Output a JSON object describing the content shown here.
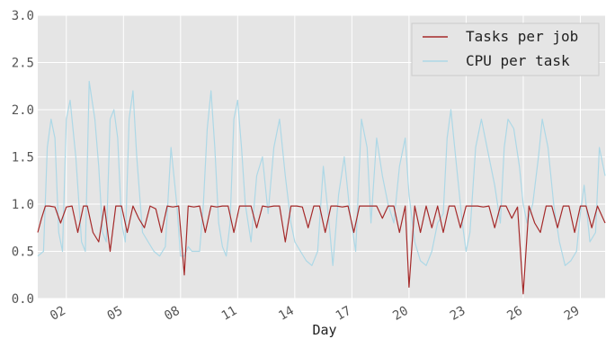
{
  "chart_data": {
    "type": "line",
    "title": "",
    "xlabel": "Day",
    "ylabel": "",
    "xlim": [
      0.5,
      30.3
    ],
    "ylim": [
      0.0,
      3.0
    ],
    "grid": true,
    "legend_position": "top-right",
    "x_ticks": [
      {
        "value": 2,
        "label": "02"
      },
      {
        "value": 5,
        "label": "05"
      },
      {
        "value": 8,
        "label": "08"
      },
      {
        "value": 11,
        "label": "11"
      },
      {
        "value": 14,
        "label": "14"
      },
      {
        "value": 17,
        "label": "17"
      },
      {
        "value": 20,
        "label": "20"
      },
      {
        "value": 23,
        "label": "23"
      },
      {
        "value": 26,
        "label": "26"
      },
      {
        "value": 29,
        "label": "29"
      }
    ],
    "y_ticks": [
      {
        "value": 0.0,
        "label": "0.0"
      },
      {
        "value": 0.5,
        "label": "0.5"
      },
      {
        "value": 1.0,
        "label": "1.0"
      },
      {
        "value": 1.5,
        "label": "1.5"
      },
      {
        "value": 2.0,
        "label": "2.0"
      },
      {
        "value": 2.5,
        "label": "2.5"
      },
      {
        "value": 3.0,
        "label": "3.0"
      }
    ],
    "series": [
      {
        "name": "CPU per task",
        "color": "#add8e6",
        "x": [
          0.5,
          0.8,
          1.0,
          1.2,
          1.4,
          1.6,
          1.8,
          2.0,
          2.2,
          2.5,
          2.8,
          3.0,
          3.2,
          3.5,
          3.7,
          3.9,
          4.1,
          4.3,
          4.5,
          4.7,
          4.9,
          5.1,
          5.3,
          5.5,
          5.7,
          6.0,
          6.3,
          6.6,
          6.9,
          7.2,
          7.5,
          7.8,
          8.0,
          8.2,
          8.4,
          8.6,
          8.8,
          9.0,
          9.2,
          9.4,
          9.6,
          9.8,
          10.0,
          10.2,
          10.4,
          10.6,
          10.8,
          11.0,
          11.2,
          11.4,
          11.7,
          12.0,
          12.3,
          12.6,
          12.9,
          13.2,
          13.5,
          13.8,
          14.0,
          14.3,
          14.6,
          14.9,
          15.2,
          15.5,
          15.8,
          16.0,
          16.3,
          16.6,
          16.9,
          17.2,
          17.5,
          17.8,
          18.0,
          18.3,
          18.6,
          18.9,
          19.2,
          19.5,
          19.8,
          20.0,
          20.3,
          20.6,
          20.9,
          21.2,
          21.5,
          21.8,
          22.0,
          22.2,
          22.5,
          22.8,
          23.0,
          23.2,
          23.5,
          23.8,
          24.0,
          24.2,
          24.5,
          24.8,
          25.0,
          25.2,
          25.5,
          25.8,
          26.0,
          26.2,
          26.5,
          26.8,
          27.0,
          27.3,
          27.6,
          27.9,
          28.2,
          28.5,
          28.8,
          29.0,
          29.2,
          29.5,
          29.8,
          30.0,
          30.3
        ],
        "values": [
          0.45,
          0.5,
          1.6,
          1.9,
          1.7,
          0.7,
          0.5,
          1.9,
          2.1,
          1.5,
          0.6,
          0.5,
          2.3,
          1.9,
          1.4,
          0.7,
          0.6,
          1.9,
          2.0,
          1.7,
          0.8,
          0.6,
          1.9,
          2.2,
          1.5,
          0.7,
          0.6,
          0.5,
          0.45,
          0.55,
          1.6,
          1.0,
          0.45,
          0.45,
          0.55,
          0.5,
          0.5,
          0.5,
          1.0,
          1.8,
          2.2,
          1.6,
          0.8,
          0.55,
          0.45,
          0.8,
          1.9,
          2.1,
          1.6,
          1.0,
          0.6,
          1.3,
          1.5,
          0.9,
          1.6,
          1.9,
          1.3,
          0.8,
          0.6,
          0.5,
          0.4,
          0.35,
          0.5,
          1.4,
          0.8,
          0.35,
          1.1,
          1.5,
          0.9,
          0.5,
          1.9,
          1.6,
          0.8,
          1.7,
          1.3,
          1.0,
          0.8,
          1.4,
          1.7,
          1.1,
          0.6,
          0.4,
          0.35,
          0.5,
          0.8,
          0.9,
          1.7,
          2.0,
          1.4,
          0.8,
          0.5,
          0.7,
          1.6,
          1.9,
          1.7,
          1.5,
          1.2,
          0.8,
          1.6,
          1.9,
          1.8,
          1.4,
          1.0,
          0.8,
          1.0,
          1.5,
          1.9,
          1.6,
          1.0,
          0.6,
          0.35,
          0.4,
          0.5,
          0.9,
          1.2,
          0.6,
          0.7,
          1.6,
          1.3
        ]
      },
      {
        "name": "Tasks per job",
        "color": "#a52a2a",
        "x": [
          0.5,
          0.7,
          0.9,
          1.1,
          1.4,
          1.7,
          2.0,
          2.3,
          2.6,
          2.9,
          3.1,
          3.4,
          3.7,
          4.0,
          4.3,
          4.6,
          4.9,
          5.2,
          5.5,
          5.8,
          6.1,
          6.4,
          6.7,
          7.0,
          7.3,
          7.6,
          7.9,
          8.2,
          8.4,
          8.7,
          9.0,
          9.3,
          9.6,
          9.9,
          10.2,
          10.5,
          10.8,
          11.1,
          11.4,
          11.7,
          12.0,
          12.3,
          12.6,
          12.9,
          13.2,
          13.5,
          13.8,
          14.1,
          14.4,
          14.7,
          15.0,
          15.3,
          15.6,
          15.9,
          16.2,
          16.5,
          16.8,
          17.1,
          17.4,
          17.7,
          18.0,
          18.3,
          18.6,
          18.9,
          19.2,
          19.5,
          19.8,
          20.0,
          20.3,
          20.6,
          20.9,
          21.2,
          21.5,
          21.8,
          22.1,
          22.4,
          22.7,
          23.0,
          23.3,
          23.6,
          23.9,
          24.2,
          24.5,
          24.8,
          25.1,
          25.4,
          25.7,
          26.0,
          26.3,
          26.6,
          26.9,
          27.2,
          27.5,
          27.8,
          28.1,
          28.4,
          28.7,
          29.0,
          29.3,
          29.6,
          29.9,
          30.3
        ],
        "values": [
          0.7,
          0.85,
          0.98,
          0.98,
          0.97,
          0.8,
          0.97,
          0.98,
          0.7,
          0.98,
          0.98,
          0.7,
          0.6,
          0.98,
          0.5,
          0.98,
          0.98,
          0.7,
          0.98,
          0.85,
          0.75,
          0.98,
          0.95,
          0.7,
          0.98,
          0.97,
          0.98,
          0.25,
          0.98,
          0.97,
          0.98,
          0.7,
          0.98,
          0.97,
          0.98,
          0.98,
          0.7,
          0.98,
          0.98,
          0.98,
          0.75,
          0.98,
          0.97,
          0.98,
          0.98,
          0.6,
          0.98,
          0.98,
          0.97,
          0.75,
          0.98,
          0.98,
          0.7,
          0.98,
          0.98,
          0.97,
          0.98,
          0.7,
          0.98,
          0.98,
          0.98,
          0.98,
          0.85,
          0.98,
          0.98,
          0.7,
          0.98,
          0.12,
          0.98,
          0.7,
          0.98,
          0.75,
          0.98,
          0.7,
          0.98,
          0.98,
          0.75,
          0.98,
          0.98,
          0.98,
          0.97,
          0.98,
          0.75,
          0.98,
          0.98,
          0.85,
          0.97,
          0.05,
          0.98,
          0.8,
          0.7,
          0.98,
          0.98,
          0.75,
          0.98,
          0.98,
          0.7,
          0.98,
          0.98,
          0.75,
          0.98,
          0.8
        ]
      }
    ]
  }
}
